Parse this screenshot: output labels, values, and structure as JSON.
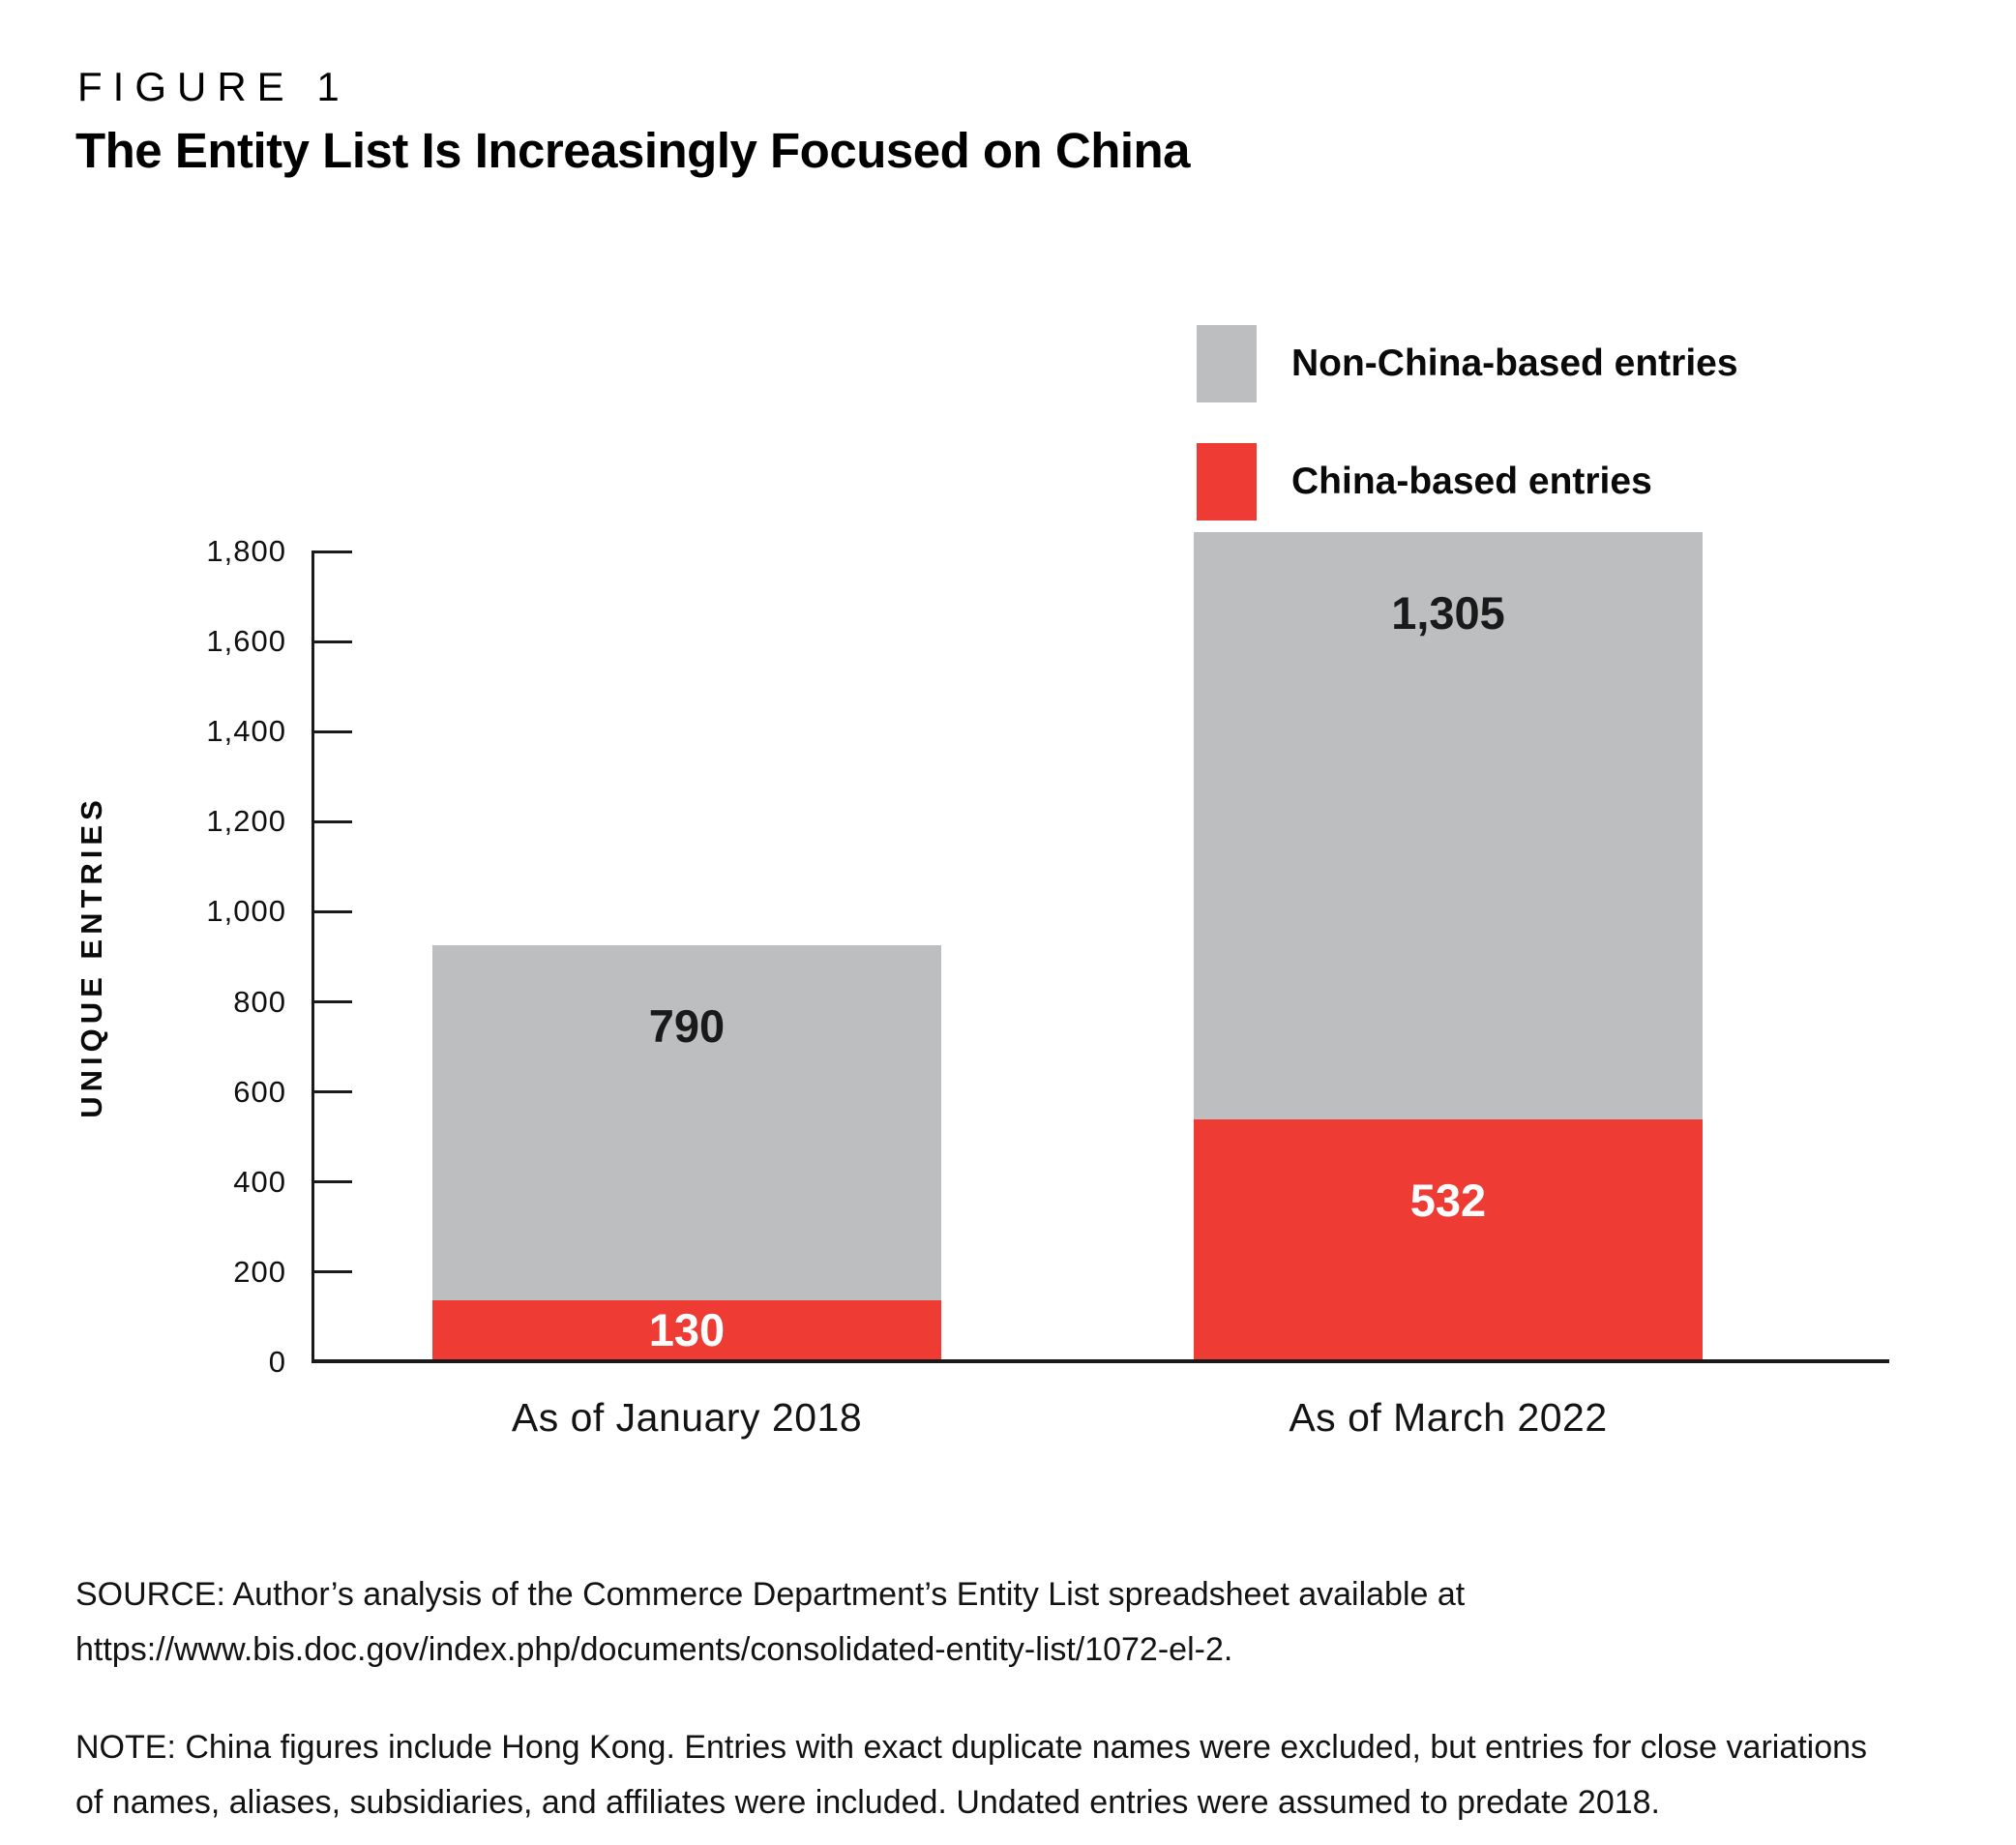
{
  "figure_label": "FIGURE 1",
  "title": "The Entity List Is Increasingly Focused on China",
  "legend": [
    {
      "label": "Non-China-based entries",
      "color": "#bdbec0"
    },
    {
      "label": "China-based entries",
      "color": "#ee3c35"
    }
  ],
  "chart_data": {
    "type": "bar",
    "stacked": true,
    "categories": [
      "As of January 2018",
      "As of March 2022"
    ],
    "series": [
      {
        "name": "China-based entries",
        "color": "#ee3c35",
        "values": [
          130,
          532
        ],
        "value_labels": [
          "130",
          "532"
        ],
        "label_color": "#ffffff"
      },
      {
        "name": "Non-China-based entries",
        "color": "#bdbec0",
        "values": [
          790,
          1305
        ],
        "value_labels": [
          "790",
          "1,305"
        ],
        "label_color": "#1a1a1a"
      }
    ],
    "totals": [
      920,
      1837
    ],
    "title": "The Entity List Is Increasingly Focused on China",
    "xlabel": "",
    "ylabel": "UNIQUE ENTRIES",
    "ylim": [
      0,
      1800
    ],
    "ytick_step": 200,
    "ytick_labels": [
      "0",
      "200",
      "400",
      "600",
      "800",
      "1,000",
      "1,200",
      "1,400",
      "1,600",
      "1,800"
    ],
    "grid": false,
    "legend_position": "top-right"
  },
  "source": {
    "line1": "SOURCE: Author’s analysis of the Commerce Department’s Entity List spreadsheet available at",
    "line2": "https://www.bis.doc.gov/index.php/documents/consolidated-entity-list/1072-el-2."
  },
  "note": {
    "line1": "NOTE: China figures include Hong Kong. Entries with exact duplicate names were excluded, but entries for close variations",
    "line2": "of names, aliases, subsidiaries, and affiliates were included. Undated entries were assumed to predate 2018."
  }
}
